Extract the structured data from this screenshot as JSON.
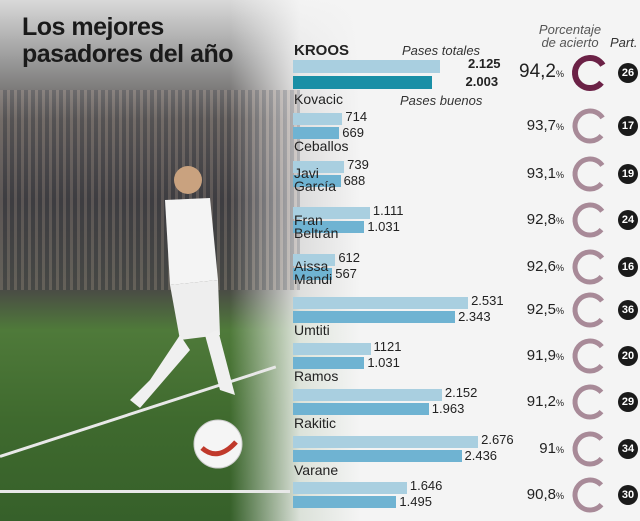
{
  "title_line1": "Los mejores",
  "title_line2": "pasadores del año",
  "headers": {
    "total": "Pases totales",
    "good": "Pases buenos",
    "pct_line1": "Porcentaje",
    "pct_line2": "de acierto",
    "matches": "Part."
  },
  "colors": {
    "total_bar": "#a9cfe0",
    "good_bar": "#6fb3d2",
    "highlight_good_bar": "#1a8fa6",
    "highlight_ring": "#6b2146",
    "ring": "#a88a98"
  },
  "chart_data": {
    "type": "bar",
    "orientation": "horizontal",
    "categories": [
      "KROOS",
      "Kovacic",
      "Ceballos",
      "Javi García",
      "Fran Beltrán",
      "Aissa Mandi",
      "Umtiti",
      "Ramos",
      "Rakitic",
      "Varane"
    ],
    "series": [
      {
        "name": "Pases totales",
        "values": [
          2125,
          714,
          739,
          1111,
          612,
          2531,
          1121,
          2152,
          2676,
          1646
        ],
        "labels": [
          "2.125",
          "714",
          "739",
          "1.111",
          "612",
          "2.531",
          "1121",
          "2.152",
          "2.676",
          "1.646"
        ]
      },
      {
        "name": "Pases buenos",
        "values": [
          2003,
          669,
          688,
          1031,
          567,
          2343,
          1031,
          1963,
          2436,
          1495
        ],
        "labels": [
          "2.003",
          "669",
          "688",
          "1.031",
          "567",
          "2.343",
          "1.031",
          "1.963",
          "2.436",
          "1.495"
        ]
      }
    ],
    "accuracy_pct": [
      94.2,
      93.7,
      93.1,
      92.8,
      92.6,
      92.5,
      91.9,
      91.2,
      91,
      90.8
    ],
    "accuracy_labels": [
      "94,2",
      "93,7",
      "93,1",
      "92,8",
      "92,6",
      "92,5",
      "91,9",
      "91,2",
      "91",
      "90,8"
    ],
    "pct_sign": "%",
    "matches": [
      "26",
      "17",
      "19",
      "24",
      "16",
      "36",
      "20",
      "29",
      "34",
      "30"
    ]
  }
}
